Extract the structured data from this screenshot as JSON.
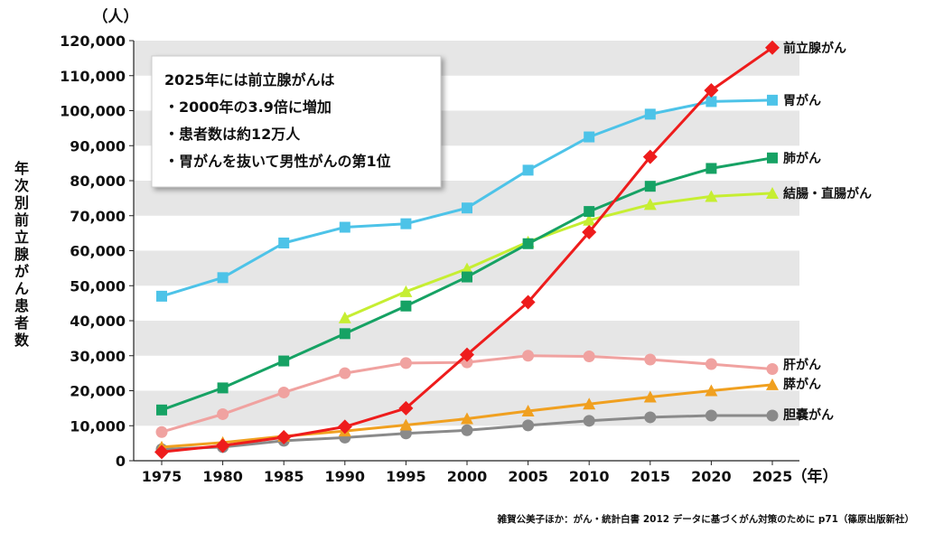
{
  "chart_data": {
    "type": "line",
    "y_unit": "（人）",
    "x_unit": "（年）",
    "ylabel": "年次別前立腺がん患者数",
    "ylim": [
      0,
      120000
    ],
    "y_ticks": [
      "0",
      "10,000",
      "20,000",
      "30,000",
      "40,000",
      "50,000",
      "60,000",
      "70,000",
      "80,000",
      "90,000",
      "100,000",
      "110,000",
      "120,000"
    ],
    "categories": [
      "1975",
      "1980",
      "1985",
      "1990",
      "1995",
      "2000",
      "2005",
      "2010",
      "2015",
      "2020",
      "2025"
    ],
    "grid": "horizontal-bands",
    "series": [
      {
        "name": "前立腺がん",
        "color": "#ee1c1c",
        "marker": "diamond",
        "values": [
          2500,
          4300,
          6700,
          9700,
          15000,
          30300,
          45300,
          65300,
          86800,
          105800,
          118000
        ]
      },
      {
        "name": "胃がん",
        "color": "#4dc3e8",
        "marker": "square",
        "values": [
          47000,
          52300,
          62200,
          66700,
          67700,
          72200,
          83000,
          92500,
          99000,
          102600,
          103000
        ]
      },
      {
        "name": "肺がん",
        "color": "#16a264",
        "marker": "square",
        "values": [
          14500,
          20800,
          28500,
          36300,
          44200,
          52500,
          62000,
          71200,
          78400,
          83500,
          86500
        ]
      },
      {
        "name": "結腸・直腸がん",
        "color": "#c6ee32",
        "marker": "triangle",
        "values": [
          null,
          null,
          null,
          40800,
          48300,
          54800,
          62500,
          68700,
          73200,
          75500,
          76400
        ]
      },
      {
        "name": "肝がん",
        "color": "#f0a2a0",
        "marker": "circle",
        "values": [
          8200,
          13300,
          19500,
          25000,
          27900,
          28100,
          30000,
          29800,
          28900,
          27600,
          26200
        ]
      },
      {
        "name": "膵がん",
        "color": "#f0a020",
        "marker": "triangle",
        "values": [
          3900,
          5200,
          7000,
          8500,
          10200,
          12000,
          14200,
          16200,
          18200,
          20000,
          21700
        ]
      },
      {
        "name": "胆嚢がん",
        "color": "#8a8a8a",
        "marker": "circle",
        "values": [
          3300,
          3900,
          5700,
          6600,
          7800,
          8700,
          10100,
          11400,
          12400,
          12900,
          12900
        ]
      }
    ]
  },
  "note": {
    "lines": [
      "2025年には前立腺がんは",
      "・2000年の3.9倍に増加",
      "・患者数は約12万人",
      "・胃がんを抜いて男性がんの第1位"
    ]
  },
  "source": "雑賀公美子ほか：がん・統計白書 2012 データに基づくがん対策のために p71（篠原出版新社）"
}
